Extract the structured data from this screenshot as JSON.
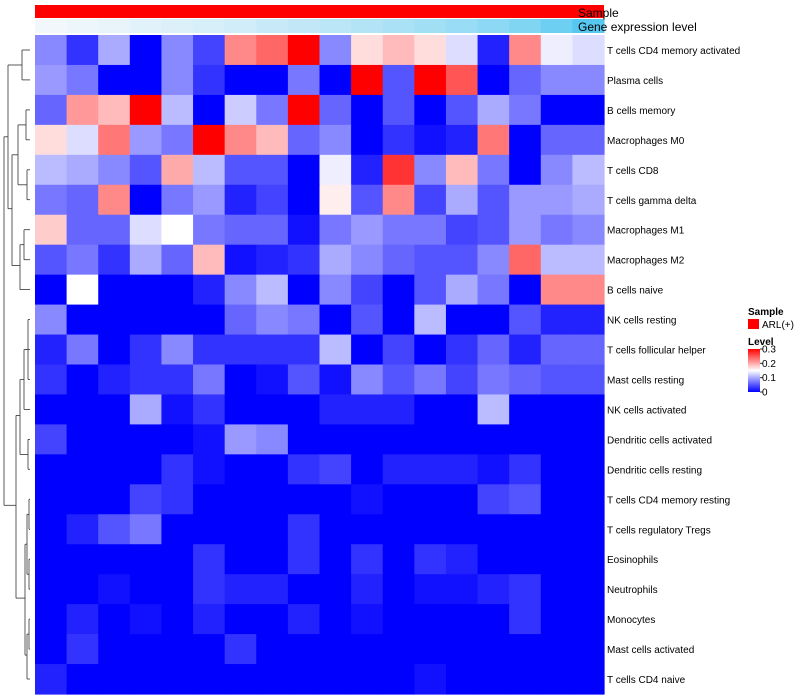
{
  "chart_data": {
    "type": "heatmap",
    "title": "",
    "columns_count": 18,
    "rows": [
      "T cells CD4 memory activated",
      "Plasma cells",
      "B cells memory",
      "Macrophages M0",
      "T cells CD8",
      "T cells gamma delta",
      "Macrophages M1",
      "Macrophages M2",
      "B cells naive",
      "NK cells resting",
      "T cells follicular helper",
      "Mast cells resting",
      "NK cells activated",
      "Dendritic cells activated",
      "Dendritic cells resting",
      "T cells CD4 memory resting",
      "T cells regulatory  Tregs",
      "Eosinophils",
      "Neutrophils",
      "Monocytes",
      "Mast cells activated",
      "T cells CD4 naive"
    ],
    "values": [
      [
        0.08,
        0.03,
        0.1,
        0.0,
        0.08,
        0.04,
        0.22,
        0.24,
        0.3,
        0.08,
        0.17,
        0.19,
        0.17,
        0.13,
        0.02,
        0.22,
        0.14,
        null
      ],
      [
        0.09,
        0.07,
        0.0,
        0.0,
        0.08,
        0.03,
        0.0,
        0.0,
        0.07,
        0.0,
        0.3,
        0.05,
        0.3,
        0.25,
        0.0,
        0.06,
        0.08,
        null
      ],
      [
        0.06,
        0.21,
        0.19,
        0.3,
        0.11,
        0.0,
        0.12,
        0.07,
        0.3,
        0.06,
        0.0,
        0.05,
        0.0,
        0.05,
        0.1,
        0.07,
        0.0,
        null
      ],
      [
        0.17,
        0.13,
        0.23,
        0.09,
        0.07,
        0.3,
        0.22,
        0.19,
        0.06,
        0.08,
        0.0,
        0.03,
        0.01,
        0.02,
        0.23,
        0.0,
        0.06,
        null
      ],
      [
        0.11,
        0.1,
        0.08,
        0.05,
        0.2,
        0.11,
        0.05,
        0.05,
        0.0,
        0.14,
        0.02,
        0.27,
        0.08,
        0.19,
        0.07,
        0.0,
        0.08,
        null
      ],
      [
        0.07,
        0.06,
        0.22,
        0.0,
        0.07,
        0.09,
        0.02,
        0.04,
        0.0,
        0.16,
        0.05,
        0.22,
        0.04,
        0.1,
        0.05,
        0.09,
        0.09,
        null
      ],
      [
        0.18,
        0.06,
        0.06,
        0.13,
        0.15,
        0.07,
        0.06,
        0.06,
        0.01,
        0.07,
        0.09,
        0.07,
        0.07,
        0.04,
        0.05,
        0.09,
        0.07,
        null
      ],
      [
        0.05,
        0.07,
        0.03,
        0.1,
        0.06,
        0.19,
        0.01,
        0.02,
        0.03,
        0.1,
        0.08,
        0.06,
        0.05,
        0.05,
        0.08,
        0.24,
        0.11,
        null
      ],
      [
        0.0,
        0.15,
        0.0,
        0.0,
        0.0,
        0.02,
        0.08,
        0.11,
        0.0,
        0.08,
        0.04,
        0.0,
        0.05,
        0.1,
        0.07,
        0.0,
        0.22,
        null
      ],
      [
        0.08,
        0.0,
        0.0,
        0.0,
        0.0,
        0.0,
        0.06,
        0.08,
        0.07,
        0.0,
        0.05,
        0.0,
        0.11,
        0.0,
        0.0,
        0.05,
        0.02,
        null
      ],
      [
        0.02,
        0.07,
        0.0,
        0.03,
        0.08,
        0.03,
        0.03,
        0.03,
        0.03,
        0.11,
        0.0,
        0.04,
        0.0,
        0.03,
        0.06,
        0.02,
        0.06,
        null
      ],
      [
        0.03,
        0.0,
        0.02,
        0.03,
        0.03,
        0.07,
        0.0,
        0.01,
        0.05,
        0.01,
        0.08,
        0.05,
        0.07,
        0.04,
        0.07,
        0.06,
        0.05,
        null
      ],
      [
        0.0,
        0.0,
        0.0,
        0.1,
        0.01,
        0.03,
        0.0,
        0.0,
        0.0,
        0.02,
        0.02,
        0.02,
        0.0,
        0.0,
        0.11,
        0.0,
        0.0,
        null
      ],
      [
        0.04,
        0.0,
        0.0,
        0.0,
        0.0,
        0.01,
        0.09,
        0.08,
        0.0,
        0.0,
        0.0,
        0.0,
        0.0,
        0.0,
        0.0,
        0.0,
        0.0,
        null
      ],
      [
        0.0,
        0.0,
        0.0,
        0.0,
        0.03,
        0.01,
        0.0,
        0.0,
        0.03,
        0.04,
        0.0,
        0.02,
        0.02,
        0.02,
        0.01,
        0.03,
        0.0,
        null
      ],
      [
        0.0,
        0.0,
        0.0,
        0.04,
        0.03,
        0.0,
        0.0,
        0.0,
        0.0,
        0.0,
        0.01,
        0.0,
        0.0,
        0.0,
        0.04,
        0.05,
        0.0,
        null
      ],
      [
        0.0,
        0.02,
        0.05,
        0.07,
        0.0,
        0.0,
        0.0,
        0.0,
        0.03,
        0.0,
        0.0,
        0.0,
        0.0,
        0.0,
        0.0,
        0.0,
        0.0,
        null
      ],
      [
        0.0,
        0.0,
        0.0,
        0.0,
        0.0,
        0.03,
        0.0,
        0.0,
        0.03,
        0.0,
        0.03,
        0.0,
        0.03,
        0.02,
        0.0,
        0.0,
        0.0,
        null
      ],
      [
        0.0,
        0.0,
        0.01,
        0.0,
        0.0,
        0.03,
        0.02,
        0.02,
        0.0,
        0.0,
        0.02,
        0.0,
        0.01,
        0.01,
        0.02,
        0.03,
        0.0,
        null
      ],
      [
        0.0,
        0.02,
        0.0,
        0.01,
        0.0,
        0.02,
        0.0,
        0.0,
        0.02,
        0.0,
        0.01,
        0.0,
        0.0,
        0.0,
        0.0,
        0.03,
        0.0,
        null
      ],
      [
        0.0,
        0.03,
        0.0,
        0.0,
        0.0,
        0.0,
        0.03,
        0.0,
        0.0,
        0.0,
        0.0,
        0.0,
        0.0,
        0.0,
        0.0,
        0.0,
        0.0,
        null
      ],
      [
        0.02,
        0.0,
        0.0,
        0.0,
        0.0,
        0.0,
        0.0,
        0.0,
        0.0,
        0.0,
        0.0,
        0.0,
        0.01,
        0.0,
        0.0,
        0.0,
        0.0,
        null
      ]
    ],
    "last_column_values": [
      0.13,
      0.08,
      0.0,
      0.06,
      0.11,
      0.1,
      0.08,
      0.11,
      0.22,
      0.02,
      0.06,
      0.05,
      0.0,
      0.0,
      0.0,
      0.0,
      0.0,
      0.0,
      0.0,
      0.0,
      0.0,
      0.0
    ],
    "sample_annotation": {
      "label": "Sample",
      "color": "#ff0000"
    },
    "expression_annotation": {
      "label": "Gene expression level",
      "values": [
        0.0,
        0.03,
        0.06,
        0.1,
        0.14,
        0.18,
        0.22,
        0.27,
        0.31,
        0.36,
        0.41,
        0.46,
        0.52,
        0.58,
        0.65,
        0.73,
        0.85,
        1.0
      ],
      "low_color": "#f2f7fb",
      "high_color": "#56c8f0"
    },
    "legend": {
      "sample_title": "Sample",
      "sample_entry": "ARL(+)",
      "sample_color": "#ff0000",
      "level_title": "Level",
      "level_ticks": [
        "0.3",
        "0.2",
        "0.1",
        "0"
      ],
      "level_tick_values": [
        0.3,
        0.2,
        0.1,
        0.0
      ],
      "scale_min": 0,
      "scale_mid": 0.15,
      "scale_max": 0.3,
      "low_color": "#0000ff",
      "mid_color": "#ffffff",
      "high_color": "#ff0000",
      "position": "right"
    },
    "dendrogram": "rows-left"
  }
}
